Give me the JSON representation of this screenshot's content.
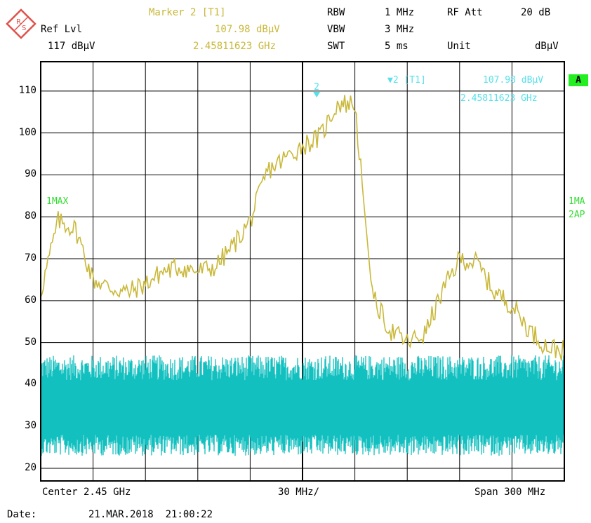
{
  "header": {
    "marker_title": "Marker 2 [T1]",
    "marker_level": "107.98 dBµV",
    "marker_freq": "2.45811623 GHz",
    "ref_lvl_label": "Ref Lvl",
    "ref_lvl_value": "117 dBµV",
    "rbw_label": "RBW",
    "rbw_value": "1 MHz",
    "vbw_label": "VBW",
    "vbw_value": "3 MHz",
    "swt_label": "SWT",
    "swt_value": "5 ms",
    "rfatt_label": "RF Att",
    "rfatt_value": "20 dB",
    "unit_label": "Unit",
    "unit_value": "dBµV"
  },
  "plot": {
    "marker_readout_title": "▼2 [T1]",
    "marker_readout_level": "107.98 dBµV",
    "marker_readout_freq": "2.45811623 GHz",
    "marker_number": "2",
    "trace1_label": "1MAX",
    "right_label_1": "1MA",
    "right_label_2": "2AP",
    "badge": "A"
  },
  "footer": {
    "center": "Center 2.45 GHz",
    "per_div": "30 MHz/",
    "span": "Span 300 MHz",
    "date_label": "Date:",
    "date_value": "21.MAR.2018  21:00:22"
  },
  "colors": {
    "trace1": "#c9b83a",
    "trace2": "#13c0c0",
    "marker": "#56e0ea",
    "grid": "#000000"
  },
  "chart_data": {
    "type": "line",
    "xlabel": "",
    "ylabel": "",
    "x": [
      2300,
      2310,
      2320,
      2330,
      2340,
      2350,
      2360,
      2370,
      2380,
      2390,
      2400,
      2410,
      2420,
      2430,
      2440,
      2450,
      2460,
      2470,
      2480,
      2490,
      2500,
      2510,
      2520,
      2530,
      2540,
      2550,
      2560,
      2570,
      2580,
      2590,
      2600
    ],
    "xlim": [
      2300,
      2600
    ],
    "ylim": [
      17,
      117
    ],
    "yticks": [
      20,
      30,
      40,
      50,
      60,
      70,
      80,
      90,
      100,
      110
    ],
    "grid": true,
    "series": [
      {
        "name": "1MAX",
        "color": "#c9b83a",
        "values": [
          62,
          79,
          77,
          65,
          63,
          62,
          64,
          67,
          68,
          67,
          68,
          73,
          79,
          91,
          94,
          97,
          99,
          107,
          107,
          61,
          53,
          50,
          52,
          62,
          70,
          69,
          62,
          59,
          53,
          49,
          48
        ]
      },
      {
        "name": "2AP",
        "color": "#13c0c0",
        "band_min": 25,
        "band_max": 43,
        "peak_max": 47,
        "peak_min": 23
      }
    ],
    "marker": {
      "label": "2",
      "x": 2458.11623,
      "y": 107.98
    }
  }
}
